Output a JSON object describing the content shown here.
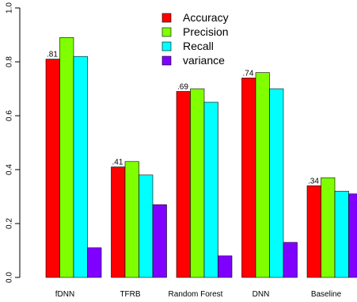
{
  "chart_data": {
    "type": "bar",
    "categories": [
      "fDNN",
      "TFRB",
      "Random Forest",
      "DNN",
      "Baseline"
    ],
    "series": [
      {
        "name": "Accuracy",
        "color": "#ff0000",
        "values": [
          0.81,
          0.41,
          0.69,
          0.74,
          0.34
        ]
      },
      {
        "name": "Precision",
        "color": "#80ff00",
        "values": [
          0.89,
          0.43,
          0.7,
          0.76,
          0.37
        ]
      },
      {
        "name": "Recall",
        "color": "#00ffff",
        "values": [
          0.82,
          0.38,
          0.65,
          0.7,
          0.32
        ]
      },
      {
        "name": "variance",
        "color": "#8000ff",
        "values": [
          0.11,
          0.27,
          0.08,
          0.13,
          0.31
        ]
      }
    ],
    "data_labels": [
      ".81",
      ".41",
      ".69",
      ".74",
      ".34"
    ],
    "ylim": [
      0,
      1.0
    ],
    "yticks": [
      "0.0",
      "0.2",
      "0.4",
      "0.6",
      "0.8",
      "1.0"
    ],
    "legend_position": "top-center",
    "grid": false,
    "title": "",
    "xlabel": "",
    "ylabel": ""
  }
}
